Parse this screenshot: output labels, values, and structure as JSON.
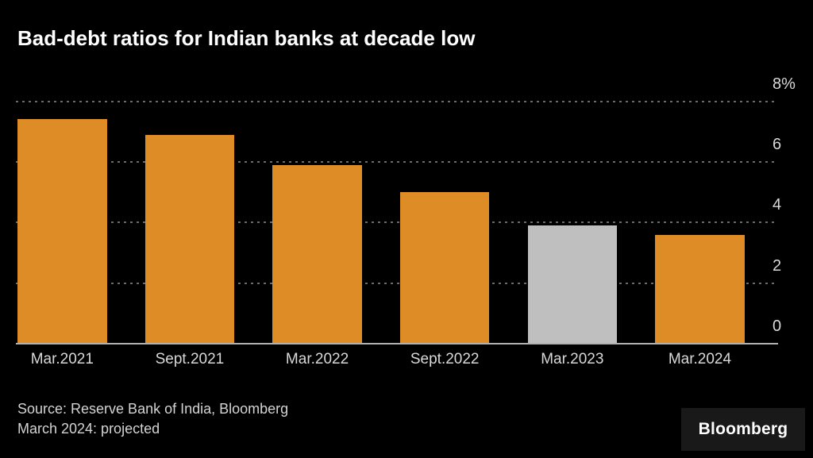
{
  "title": "Bad-debt ratios for Indian banks at decade low",
  "chart_data": {
    "type": "bar",
    "categories": [
      "Mar.2021",
      "Sept.2021",
      "Mar.2022",
      "Sept.2022",
      "Mar.2023",
      "Mar.2024"
    ],
    "values": [
      7.4,
      6.9,
      5.9,
      5.0,
      3.9,
      3.6
    ],
    "unit": "%",
    "title": "Bad-debt ratios for Indian banks at decade low",
    "xlabel": "",
    "ylabel": "",
    "ylim": [
      0,
      8
    ],
    "y_ticks": [
      0,
      2,
      4,
      6,
      8
    ],
    "y_tick_labels": [
      "0",
      "2",
      "4",
      "6",
      "8%"
    ],
    "grid": "horizontal dotted, axis labels on right",
    "legend": "none",
    "bar_color": "#DD8C26",
    "highlight": {
      "index": 4,
      "color": "#BFBFBF",
      "category": "Mar.2023"
    },
    "background_color": "#000000",
    "annotation": "March 2024: projected"
  },
  "footer": {
    "source": "Source: Reserve Bank of India, Bloomberg",
    "note": "March 2024: projected",
    "brand": "Bloomberg"
  },
  "colors": {
    "background": "#000000",
    "title_text": "#ffffff",
    "tick_text": "#d9d9d9",
    "gridline": "#6b6b6b",
    "axis_line": "#b0b2b4",
    "bar_orange": "#DD8C26",
    "bar_gray": "#BFBFBF",
    "logo_box": "#191919"
  }
}
